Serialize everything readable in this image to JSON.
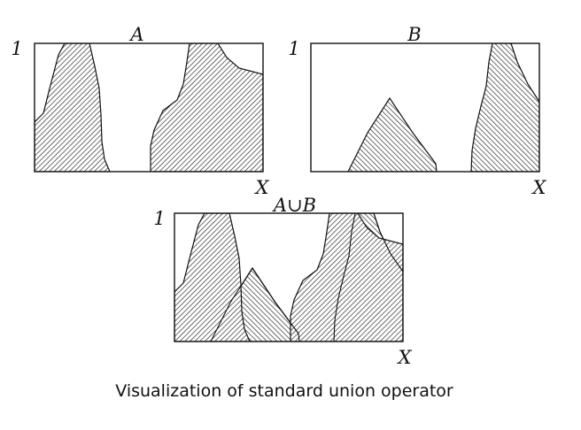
{
  "panels": [
    {
      "id": "a",
      "title": "A",
      "y_tick": "1",
      "x_label": "X"
    },
    {
      "id": "b",
      "title": "B",
      "y_tick": "1",
      "x_label": "X"
    },
    {
      "id": "union",
      "title": "A∪B",
      "y_tick": "1",
      "x_label": "X"
    }
  ],
  "caption": "Visualization of standard union operator"
}
